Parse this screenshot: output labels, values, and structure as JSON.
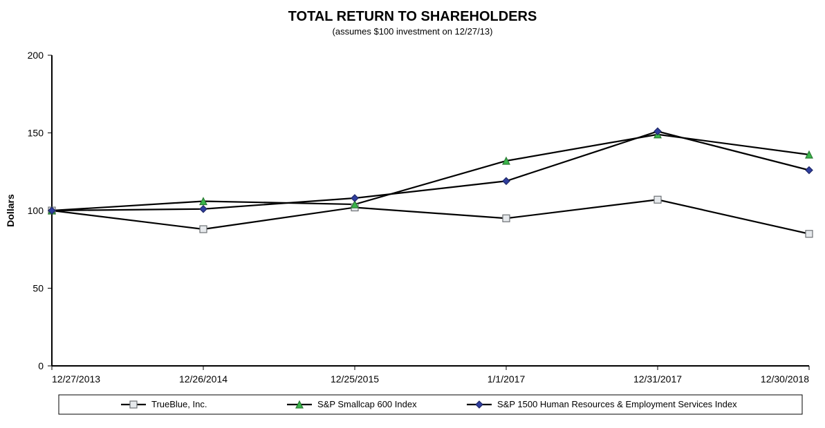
{
  "chart": {
    "type": "line",
    "title": "TOTAL RETURN TO SHAREHOLDERS",
    "subtitle": "(assumes $100 investment on 12/27/13)",
    "y_axis_label": "Dollars",
    "background_color": "#ffffff",
    "axis_color": "#000000",
    "tick_color": "#000000",
    "tick_fontsize": 14,
    "title_fontsize": 20,
    "subtitle_fontsize": 13,
    "legend_fontsize": 13,
    "line_color": "#000000",
    "line_width": 2.2,
    "yrange": [
      0,
      200
    ],
    "yticks": [
      0,
      50,
      100,
      150,
      200
    ],
    "x_categories": [
      "12/27/2013",
      "12/26/2014",
      "12/25/2015",
      "1/1/2017",
      "12/31/2017",
      "12/30/2018"
    ],
    "series": [
      {
        "name": "TrueBlue, Inc.",
        "marker": "square",
        "marker_fill": "#e6e9ec",
        "marker_stroke": "#6b6f73",
        "marker_size": 10,
        "values": [
          100,
          88,
          102,
          95,
          107,
          85
        ]
      },
      {
        "name": "S&P Smallcap 600 Index",
        "marker": "triangle",
        "marker_fill": "#39b54a",
        "marker_stroke": "#2b7a33",
        "marker_size": 10,
        "values": [
          100,
          106,
          104,
          132,
          149,
          136
        ]
      },
      {
        "name": "S&P 1500 Human Resources & Employment Services Index",
        "marker": "diamond",
        "marker_fill": "#2f3e9e",
        "marker_stroke": "#1e2766",
        "marker_size": 10,
        "values": [
          100,
          101,
          108,
          119,
          151,
          126
        ]
      }
    ],
    "legend": {
      "border_color": "#000000",
      "border_width": 1,
      "background": "#ffffff"
    }
  }
}
